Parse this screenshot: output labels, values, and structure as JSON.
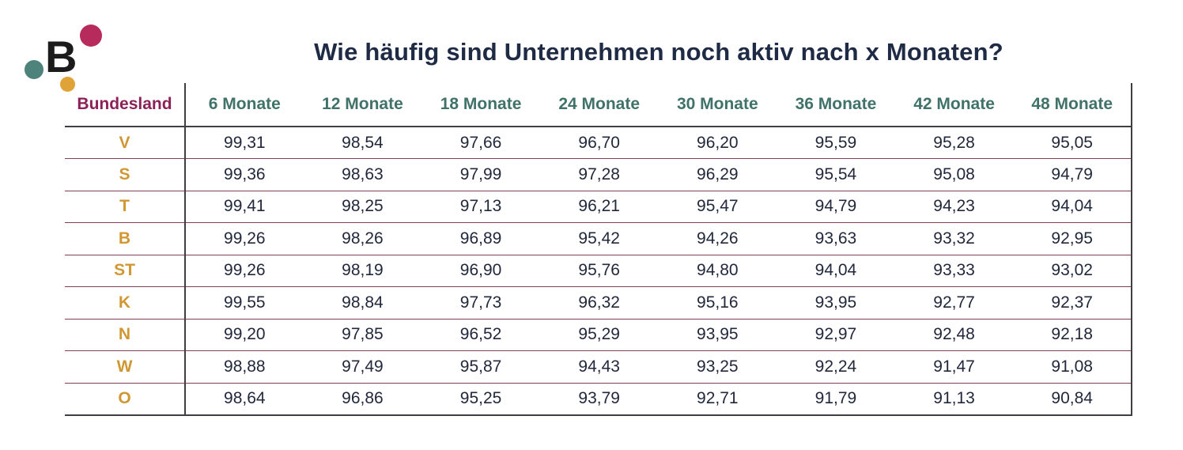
{
  "logo": {
    "letter": "B",
    "dot_colors": {
      "crimson": "#b72a5c",
      "teal": "#4e837b",
      "orange": "#e0a337"
    }
  },
  "title": "Wie häufig sind Unternehmen noch aktiv nach x Monaten?",
  "colors": {
    "title_text": "#1f2a44",
    "bundesland_header": "#8b2156",
    "month_header": "#40726a",
    "row_label": "#d19733",
    "value_text": "#22283c",
    "row_separator": "#7d4059",
    "strong_border": "#3e3e44"
  },
  "table": {
    "headers": [
      "Bundesland",
      "6 Monate",
      "12 Monate",
      "18 Monate",
      "24 Monate",
      "30 Monate",
      "36 Monate",
      "42 Monate",
      "48 Monate"
    ],
    "rows": [
      {
        "label": "V",
        "values": [
          "99,31",
          "98,54",
          "97,66",
          "96,70",
          "96,20",
          "95,59",
          "95,28",
          "95,05"
        ]
      },
      {
        "label": "S",
        "values": [
          "99,36",
          "98,63",
          "97,99",
          "97,28",
          "96,29",
          "95,54",
          "95,08",
          "94,79"
        ]
      },
      {
        "label": "T",
        "values": [
          "99,41",
          "98,25",
          "97,13",
          "96,21",
          "95,47",
          "94,79",
          "94,23",
          "94,04"
        ]
      },
      {
        "label": "B",
        "values": [
          "99,26",
          "98,26",
          "96,89",
          "95,42",
          "94,26",
          "93,63",
          "93,32",
          "92,95"
        ]
      },
      {
        "label": "ST",
        "values": [
          "99,26",
          "98,19",
          "96,90",
          "95,76",
          "94,80",
          "94,04",
          "93,33",
          "93,02"
        ]
      },
      {
        "label": "K",
        "values": [
          "99,55",
          "98,84",
          "97,73",
          "96,32",
          "95,16",
          "93,95",
          "92,77",
          "92,37"
        ]
      },
      {
        "label": "N",
        "values": [
          "99,20",
          "97,85",
          "96,52",
          "95,29",
          "93,95",
          "92,97",
          "92,48",
          "92,18"
        ]
      },
      {
        "label": "W",
        "values": [
          "98,88",
          "97,49",
          "95,87",
          "94,43",
          "93,25",
          "92,24",
          "91,47",
          "91,08"
        ]
      },
      {
        "label": "O",
        "values": [
          "98,64",
          "96,86",
          "95,25",
          "93,79",
          "92,71",
          "91,79",
          "91,13",
          "90,84"
        ]
      }
    ]
  },
  "chart_data": {
    "type": "table",
    "title": "Wie häufig sind Unternehmen noch aktiv nach x Monaten?",
    "columns": [
      "Bundesland",
      "6 Monate",
      "12 Monate",
      "18 Monate",
      "24 Monate",
      "30 Monate",
      "36 Monate",
      "42 Monate",
      "48 Monate"
    ],
    "rows": [
      {
        "label": "V",
        "values": [
          99.31,
          98.54,
          97.66,
          96.7,
          96.2,
          95.59,
          95.28,
          95.05
        ]
      },
      {
        "label": "S",
        "values": [
          99.36,
          98.63,
          97.99,
          97.28,
          96.29,
          95.54,
          95.08,
          94.79
        ]
      },
      {
        "label": "T",
        "values": [
          99.41,
          98.25,
          97.13,
          96.21,
          95.47,
          94.79,
          94.23,
          94.04
        ]
      },
      {
        "label": "B",
        "values": [
          99.26,
          98.26,
          96.89,
          95.42,
          94.26,
          93.63,
          93.32,
          92.95
        ]
      },
      {
        "label": "ST",
        "values": [
          99.26,
          98.19,
          96.9,
          95.76,
          94.8,
          94.04,
          93.33,
          93.02
        ]
      },
      {
        "label": "K",
        "values": [
          99.55,
          98.84,
          97.73,
          96.32,
          95.16,
          93.95,
          92.77,
          92.37
        ]
      },
      {
        "label": "N",
        "values": [
          99.2,
          97.85,
          96.52,
          95.29,
          93.95,
          92.97,
          92.48,
          92.18
        ]
      },
      {
        "label": "W",
        "values": [
          98.88,
          97.49,
          95.87,
          94.43,
          93.25,
          92.24,
          91.47,
          91.08
        ]
      },
      {
        "label": "O",
        "values": [
          98.64,
          96.86,
          95.25,
          93.79,
          92.71,
          91.79,
          91.13,
          90.84
        ]
      }
    ]
  }
}
